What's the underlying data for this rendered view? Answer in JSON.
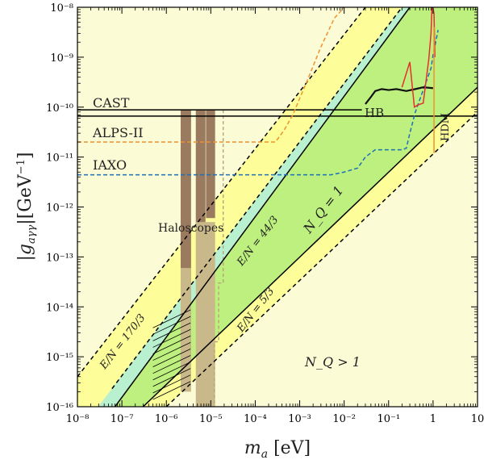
{
  "chart_data": {
    "type": "line",
    "xscale": "log",
    "yscale": "log",
    "xlim": [
      1e-08,
      10
    ],
    "ylim": [
      1e-16,
      1e-08
    ],
    "xlabel": "m_a [eV]",
    "ylabel": "|g_{aγγ}|[GeV^{-1}]",
    "x_ticks": [
      "10⁻⁸",
      "10⁻⁷",
      "10⁻⁶",
      "10⁻⁵",
      "10⁻⁴",
      "10⁻³",
      "10⁻²",
      "10⁻¹",
      "1",
      "10"
    ],
    "y_ticks": [
      "10⁻⁸",
      "10⁻⁹",
      "10⁻¹⁰",
      "10⁻¹¹",
      "10⁻¹²",
      "10⁻¹³",
      "10⁻¹⁴",
      "10⁻¹⁵",
      "10⁻¹⁶"
    ],
    "bands": [
      {
        "name": "N_Q > 1 region",
        "color": "#fbfbd6",
        "x_at_top": 0.1,
        "y": [
          1e-08
        ]
      },
      {
        "name": "yellow band",
        "color": "#fdfd9a",
        "upper_line": "E/N = 170/3",
        "lower_line": "lower dashed"
      },
      {
        "name": "green band",
        "color": "#bdf07e",
        "upper_line": "E/N = 44/3",
        "lower_line": "E/N = 5/3"
      },
      {
        "name": "cyan band",
        "color": "#b8f0d0",
        "upper_line": "E/N = 44/3",
        "lower_line": "upper solid"
      }
    ],
    "series": [
      {
        "name": "CAST",
        "values": [
          [
            1e-08,
            8.8e-11
          ],
          [
            0.025,
            8.8e-11
          ]
        ],
        "color": "#000000",
        "style": "solid"
      },
      {
        "name": "",
        "values": [
          [
            1e-08,
            6.6e-11
          ],
          [
            10,
            6.6e-11
          ]
        ],
        "color": "#000000",
        "style": "solid"
      },
      {
        "name": "ALPS-II",
        "values": [
          [
            1e-08,
            2e-11
          ],
          [
            0.00028,
            2e-11
          ],
          [
            0.00032,
            2.3e-11
          ],
          [
            0.00045,
            3.5e-11
          ],
          [
            0.0007,
            7e-11
          ],
          [
            0.001,
            1.5e-10
          ],
          [
            0.0015,
            3.5e-10
          ],
          [
            0.003,
            1.6e-09
          ],
          [
            0.006,
            6e-09
          ],
          [
            0.01,
            1e-08
          ]
        ],
        "color": "#f0922e",
        "style": "dashed"
      },
      {
        "name": "IAXO",
        "values": [
          [
            1e-08,
            4.4e-12
          ],
          [
            0.005,
            4.4e-12
          ],
          [
            0.01,
            5e-12
          ],
          [
            0.02,
            6e-12
          ],
          [
            0.03,
            1e-11
          ],
          [
            0.05,
            1.4e-11
          ],
          [
            0.2,
            1.4e-11
          ],
          [
            0.25,
            1.5e-11
          ],
          [
            0.3,
            3e-11
          ],
          [
            0.4,
            8e-11
          ],
          [
            0.6,
            2.2e-10
          ],
          [
            0.9,
            6e-10
          ],
          [
            1,
            1.1e-09
          ],
          [
            1.3,
            3.5e-09
          ]
        ],
        "color": "#1f6fb8",
        "style": "dashed"
      },
      {
        "name": "HB",
        "values": [
          [
            0.03,
            1.15e-10
          ],
          [
            0.04,
            1.6e-10
          ],
          [
            0.05,
            2.1e-10
          ],
          [
            0.07,
            2.3e-10
          ],
          [
            0.1,
            2.2e-10
          ],
          [
            0.15,
            2.3e-10
          ],
          [
            0.25,
            2.1e-10
          ],
          [
            0.4,
            2.3e-10
          ],
          [
            0.6,
            2.5e-10
          ],
          [
            1,
            2.4e-10
          ]
        ],
        "color": "#111111",
        "style": "solid"
      },
      {
        "name": "HDM",
        "values": [
          [
            0.2,
            2.5e-10
          ],
          [
            0.3,
            8e-10
          ],
          [
            0.38,
            1e-10
          ],
          [
            0.45,
            1.1e-10
          ],
          [
            0.6,
            1.2e-10
          ],
          [
            0.8,
            9e-10
          ],
          [
            0.9,
            3e-09
          ],
          [
            0.95,
            1.2e-08
          ],
          [
            1.05,
            7.5e-09
          ],
          [
            1.1,
            1e-09
          ]
        ],
        "color": "#e53030",
        "style": "solid"
      },
      {
        "name": "",
        "values": [
          [
            1.05,
            4e-09
          ],
          [
            1.05,
            1.2e-11
          ]
        ],
        "color": "#f0922e",
        "style": "solid"
      },
      {
        "name": "Haloscopes",
        "values": [
          [
            2.2e-06,
            8.8e-11
          ],
          [
            2.2e-06,
            8e-16
          ],
          [
            3.5e-06,
            8e-16
          ],
          [
            3.5e-06,
            8.8e-11
          ]
        ],
        "color": "#9a7a5e",
        "style": "fill"
      }
    ],
    "lines": [
      {
        "label": "E/N = 170/3",
        "x": [
          1e-08,
          0.03
        ],
        "y": [
          4e-16,
          1e-08
        ],
        "style": "dashed",
        "color": "#000000"
      },
      {
        "label": "E/N = 44/3",
        "x": [
          6e-08,
          0.2
        ],
        "y": [
          2.3e-16,
          1e-08
        ],
        "style": "dashed",
        "color": "#000000"
      },
      {
        "label": "N_Q = 1",
        "x": [
          7e-08,
          0.3
        ],
        "y": [
          1e-16,
          1e-08
        ],
        "style": "solid",
        "color": "#000000"
      },
      {
        "label": "E/N = 5/3",
        "x": [
          3e-07,
          10
        ],
        "y": [
          1e-16,
          2.5e-10
        ],
        "style": "solid",
        "color": "#000000"
      },
      {
        "label": "",
        "x": [
          1e-06,
          10
        ],
        "y": [
          1e-16,
          8e-11
        ],
        "style": "dashed",
        "color": "#000000"
      }
    ],
    "annotations": [
      "CAST",
      "ALPS-II",
      "IAXO",
      "Haloscopes",
      "HB",
      "HDM",
      "E/N = 44/3",
      "E/N = 170/3",
      "E/N = 5/3",
      "N_Q = 1",
      "N_Q > 1"
    ]
  }
}
